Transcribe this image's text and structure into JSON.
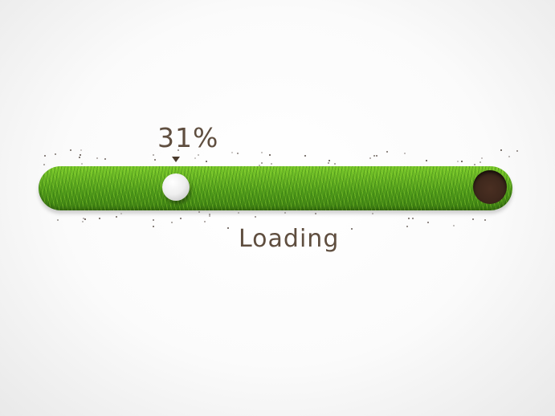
{
  "progress": {
    "percent_label": "31%",
    "value": 0.31,
    "status_label": "Loading"
  },
  "icons": {
    "ball": "golf-ball-icon",
    "hole": "golf-hole-icon",
    "marker": "triangle-down-icon"
  },
  "colors": {
    "text": "#5f4e3f",
    "grass": "#5ea620",
    "hole": "#3b261b"
  }
}
